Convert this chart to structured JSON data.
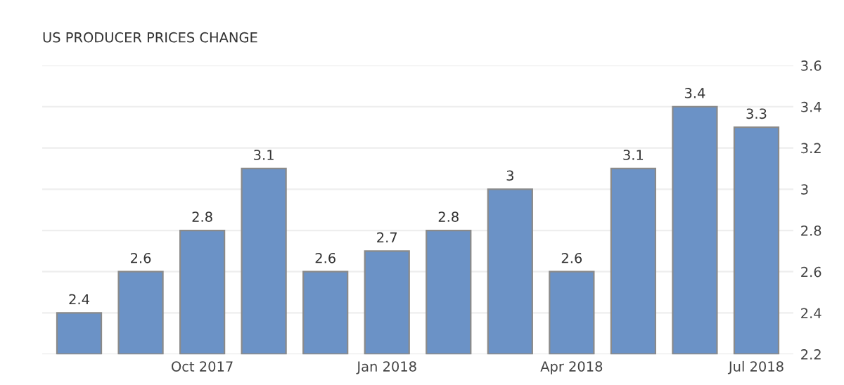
{
  "chart_data": {
    "type": "bar",
    "title": "US PRODUCER PRICES CHANGE",
    "categories": [
      null,
      null,
      "Oct 2017",
      null,
      null,
      "Jan 2018",
      null,
      null,
      "Apr 2018",
      null,
      null,
      "Jul 2018"
    ],
    "values": [
      2.4,
      2.6,
      2.8,
      3.1,
      2.6,
      2.7,
      2.8,
      3,
      2.6,
      3.1,
      3.4,
      3.3
    ],
    "color": "#6b92c6",
    "ylim": [
      2.2,
      3.6
    ],
    "yticks": [
      2.2,
      2.4,
      2.6,
      2.8,
      3,
      3.2,
      3.4,
      3.6
    ],
    "grid": "y",
    "data_labels": true
  }
}
